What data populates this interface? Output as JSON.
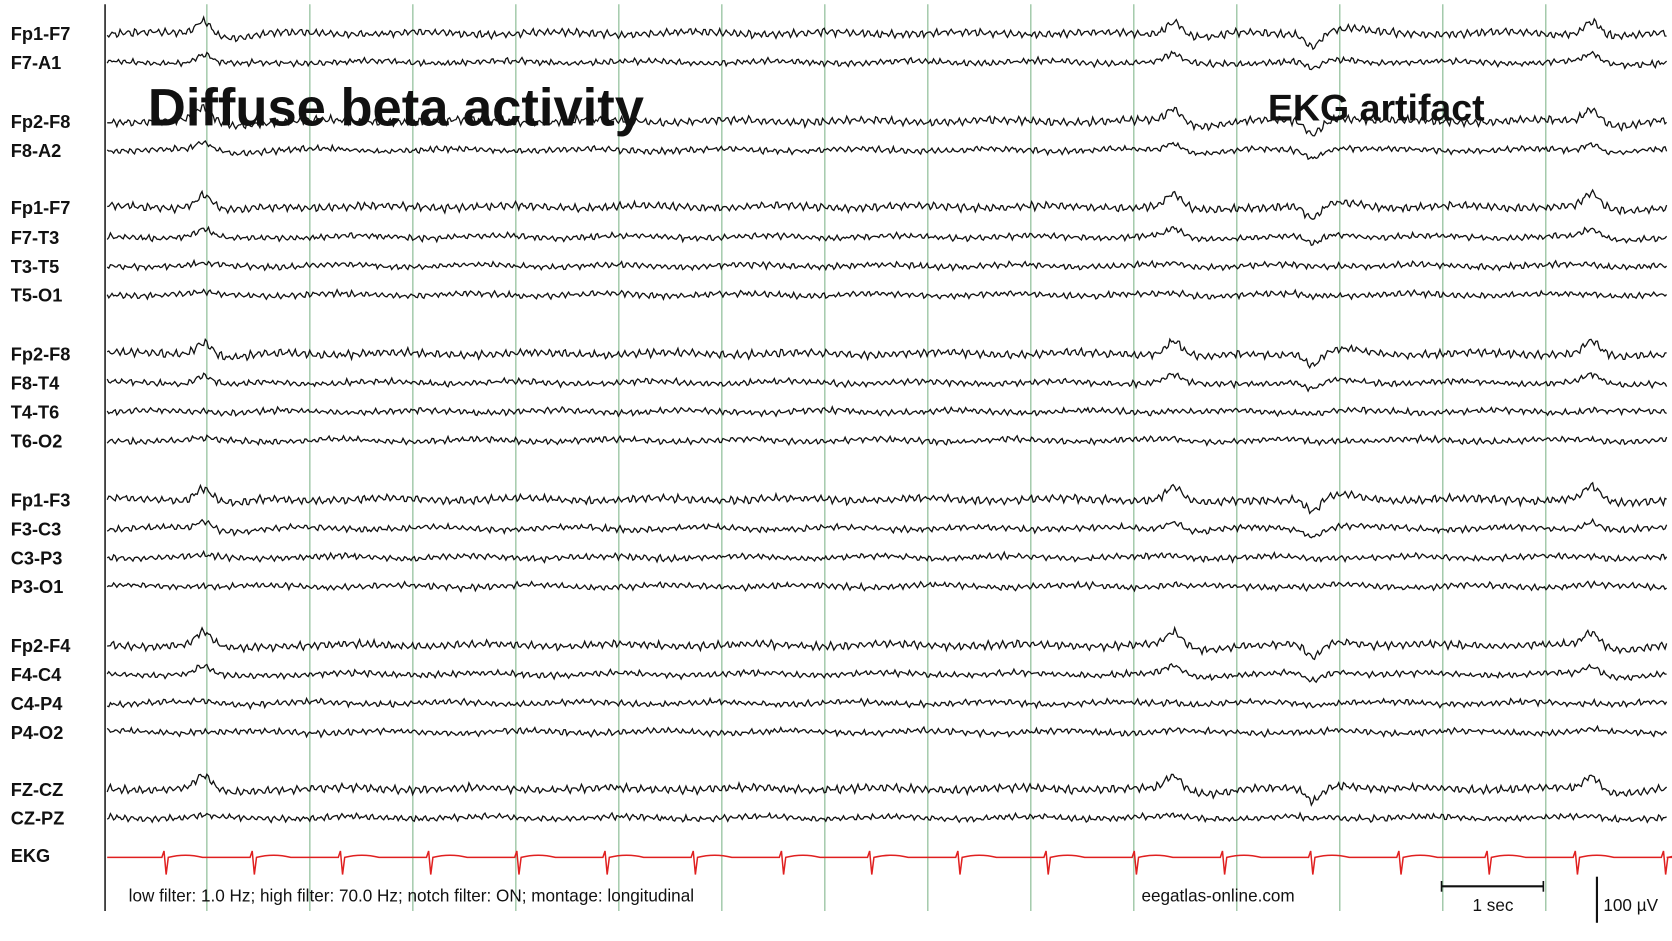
{
  "annotations": {
    "left": "Diffuse beta activity",
    "right": "EKG artifact"
  },
  "channels": [
    "Fp1-F7",
    "F7-A1",
    "Fp2-F8",
    "F8-A2",
    "Fp1-F7",
    "F7-T3",
    "T3-T5",
    "T5-O1",
    "Fp2-F8",
    "F8-T4",
    "T4-T6",
    "T6-O2",
    "Fp1-F3",
    "F3-C3",
    "C3-P3",
    "P3-O1",
    "Fp2-F4",
    "F4-C4",
    "C4-P4",
    "P4-O2",
    "FZ-CZ",
    "CZ-PZ",
    "EKG"
  ],
  "footer": {
    "filters": "low filter: 1.0 Hz; high filter: 70.0 Hz; notch filter: ON; montage: longitudinal",
    "site": "eegatlas-online.com",
    "time_scale": "1 sec",
    "amplitude_scale": "100 µV"
  }
}
